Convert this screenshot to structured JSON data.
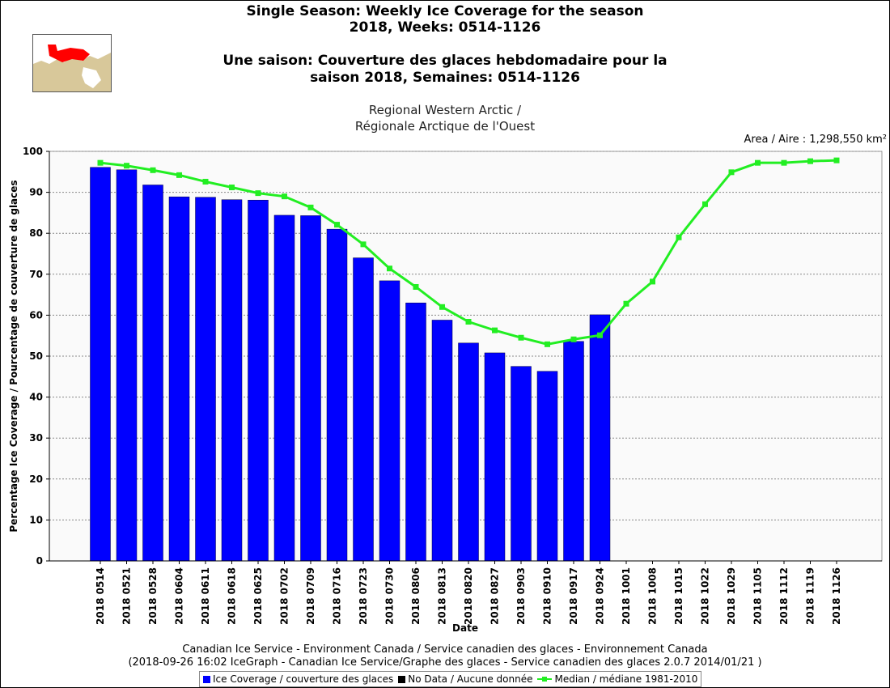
{
  "header": {
    "title_en_line1": "Single Season: Weekly Ice Coverage for the season",
    "title_en_line2": "2018, Weeks: 0514-1126",
    "title_fr_line1": "Une saison: Couverture des glaces hebdomadaire pour la",
    "title_fr_line2": "saison 2018, Semaines: 0514-1126",
    "region_en": "Regional Western Arctic /",
    "region_fr": "Régionale Arctique de l'Ouest",
    "area": "Area / Aire : 1,298,550 km²"
  },
  "footer": {
    "line1": "Canadian Ice Service - Environment Canada / Service canadien des glaces - Environnement Canada",
    "line2": "(2018-09-26 16:02 IceGraph - Canadian Ice Service/Graphe des glaces - Service canadien des glaces 2.0.7 2014/01/21 )"
  },
  "legend": {
    "ice": "Ice Coverage / couverture des glaces",
    "nodata": "No Data / Aucune donnée",
    "median": "Median / médiane 1981-2010"
  },
  "colors": {
    "bar": "#0000ff",
    "median": "#22ee22",
    "nodata": "#000000",
    "plot_bg": "#fafafa",
    "grid": "#888888",
    "map_land": "#d8c89a",
    "map_water": "#ffffff",
    "map_region": "#ff0000"
  },
  "chart_data": {
    "type": "bar",
    "xlabel": "Date",
    "ylabel": "Percentage Ice Coverage / Pourcentage de couverture de glaces",
    "ylim": [
      0,
      100
    ],
    "yticks": [
      0,
      10,
      20,
      30,
      40,
      50,
      60,
      70,
      80,
      90,
      100
    ],
    "grid": true,
    "categories": [
      "2018 0514",
      "2018 0521",
      "2018 0528",
      "2018 0604",
      "2018 0611",
      "2018 0618",
      "2018 0625",
      "2018 0702",
      "2018 0709",
      "2018 0716",
      "2018 0723",
      "2018 0730",
      "2018 0806",
      "2018 0813",
      "2018 0820",
      "2018 0827",
      "2018 0903",
      "2018 0910",
      "2018 0917",
      "2018 0924",
      "2018 1001",
      "2018 1008",
      "2018 1015",
      "2018 1022",
      "2018 1029",
      "2018 1105",
      "2018 1112",
      "2018 1119",
      "2018 1126"
    ],
    "series": [
      {
        "name": "Ice Coverage / couverture des glaces",
        "type": "bar",
        "values": [
          96.1,
          95.5,
          91.8,
          88.9,
          88.8,
          88.2,
          88.1,
          84.4,
          84.3,
          81.0,
          74.0,
          68.4,
          63.0,
          58.8,
          53.2,
          50.8,
          47.5,
          46.3,
          53.6,
          60.1,
          null,
          null,
          null,
          null,
          null,
          null,
          null,
          null,
          null
        ]
      },
      {
        "name": "Median / médiane 1981-2010",
        "type": "line",
        "values": [
          97.2,
          96.5,
          95.4,
          94.2,
          92.6,
          91.2,
          89.8,
          89.0,
          86.3,
          82.1,
          77.3,
          71.4,
          66.9,
          62.0,
          58.4,
          56.3,
          54.5,
          52.9,
          54.1,
          55.1,
          62.8,
          68.2,
          79.0,
          87.1,
          94.9,
          97.2,
          97.2,
          97.6,
          97.8
        ]
      }
    ]
  }
}
